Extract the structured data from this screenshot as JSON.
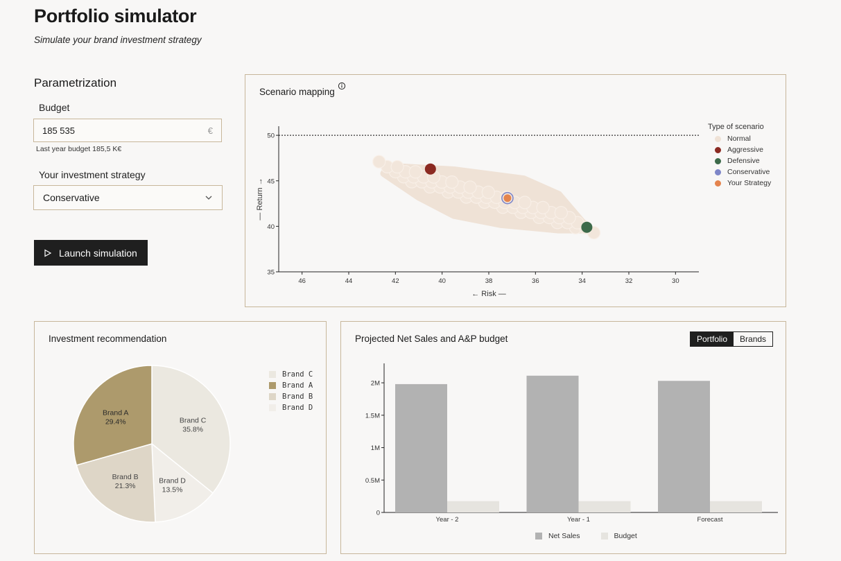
{
  "header": {
    "title": "Portfolio simulator",
    "subtitle": "Simulate your brand investment strategy"
  },
  "params": {
    "heading": "Parametrization",
    "budget_label": "Budget",
    "budget_value": "185 535",
    "currency": "€",
    "budget_hint": "Last year budget 185,5 K€",
    "strategy_label": "Your investment strategy",
    "strategy_value": "Conservative",
    "launch_label": "Launch simulation"
  },
  "scenario": {
    "title": "Scenario mapping",
    "legend_title": "Type of scenario",
    "legend": [
      {
        "name": "Normal",
        "color": "#efe2d6"
      },
      {
        "name": "Aggressive",
        "color": "#8b2a22"
      },
      {
        "name": "Defensive",
        "color": "#3d6a4a"
      },
      {
        "name": "Conservative",
        "color": "#7e86c8"
      },
      {
        "name": "Your Strategy",
        "color": "#e4844e"
      }
    ],
    "xlabel": "← Risk —",
    "ylabel": "— Return →"
  },
  "investment": {
    "title": "Investment recommendation"
  },
  "projection": {
    "title": "Projected Net Sales and A&P budget",
    "toggle": [
      "Portfolio",
      "Brands"
    ],
    "legend": [
      "Net Sales",
      "Budget"
    ]
  },
  "chart_data": [
    {
      "type": "scatter",
      "title": "Scenario mapping",
      "xlabel": "← Risk —",
      "ylabel": "— Return →",
      "xlim": [
        47,
        29
      ],
      "ylim": [
        35,
        51
      ],
      "x_ticks": [
        46,
        44,
        42,
        40,
        38,
        36,
        34,
        32,
        30
      ],
      "y_ticks": [
        35,
        40,
        45,
        50
      ],
      "reference_line_y": 50,
      "normal_region_polygon": [
        [
          42.3,
          46.6
        ],
        [
          39.5,
          46.2
        ],
        [
          36.5,
          45.2
        ],
        [
          35.0,
          43.5
        ],
        [
          34.0,
          40.5
        ],
        [
          33.6,
          39.6
        ],
        [
          35.0,
          39.6
        ],
        [
          37.5,
          40.2
        ],
        [
          39.5,
          41.2
        ],
        [
          41.0,
          43.2
        ],
        [
          42.5,
          45.8
        ]
      ],
      "series": [
        {
          "name": "Aggressive",
          "points": [
            [
              40.5,
              46.3
            ]
          ]
        },
        {
          "name": "Defensive",
          "points": [
            [
              33.8,
              39.9
            ]
          ]
        },
        {
          "name": "Conservative",
          "points": [
            [
              37.2,
              43.1
            ]
          ]
        },
        {
          "name": "Your Strategy",
          "points": [
            [
              37.2,
              43.1
            ]
          ]
        }
      ]
    },
    {
      "type": "pie",
      "title": "Investment recommendation",
      "slices": [
        {
          "name": "Brand C",
          "value": 35.8,
          "label": "35.8%",
          "color": "#ebe8e0"
        },
        {
          "name": "Brand D",
          "value": 13.5,
          "label": "13.5%",
          "color": "#f1eee9"
        },
        {
          "name": "Brand B",
          "value": 21.3,
          "label": "21.3%",
          "color": "#ded6c7"
        },
        {
          "name": "Brand A",
          "value": 29.4,
          "label": "29.4%",
          "color": "#ad9a6c"
        }
      ],
      "legend_order": [
        "Brand C",
        "Brand A",
        "Brand B",
        "Brand D"
      ]
    },
    {
      "type": "bar",
      "title": "Projected Net Sales and A&P budget",
      "categories": [
        "Year - 2",
        "Year - 1",
        "Forecast"
      ],
      "ylim": [
        0,
        2300000
      ],
      "y_ticks": [
        [
          0,
          "0"
        ],
        [
          500000,
          "0.5M"
        ],
        [
          1000000,
          "1M"
        ],
        [
          1500000,
          "1.5M"
        ],
        [
          2000000,
          "2M"
        ]
      ],
      "series": [
        {
          "name": "Net Sales",
          "values": [
            1980000,
            2110000,
            2030000
          ],
          "color": "#b2b2b2"
        },
        {
          "name": "Budget",
          "values": [
            175000,
            175000,
            175000
          ],
          "color": "#e6e4df"
        }
      ]
    }
  ]
}
